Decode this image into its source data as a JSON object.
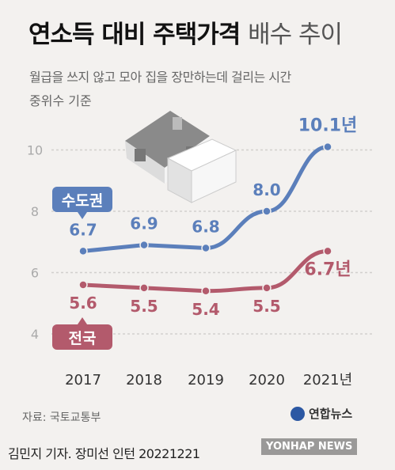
{
  "title_bold": "연소득 대비 주택가격",
  "title_light": "배수 추이",
  "subtitle": "월급을 쓰지 않고 모아 집을 장만하는데 걸리는 시간",
  "basis": "중위수 기준",
  "source": "자료: 국토교통부",
  "credit": "김민지 기자. 장미선 인턴  20221221",
  "logo_text": "연합뉴스",
  "watermark": "YONHAP NEWS",
  "chart_data": {
    "type": "line",
    "x": [
      "2017",
      "2018",
      "2019",
      "2020",
      "2021년"
    ],
    "yticks": [
      4,
      6,
      8,
      10
    ],
    "ylim": [
      3.5,
      11
    ],
    "grid": true,
    "series": [
      {
        "name": "수도권",
        "color": "#5b7fbb",
        "values": [
          6.7,
          6.9,
          6.8,
          8.0,
          10.1
        ],
        "labels": [
          "6.7",
          "6.9",
          "6.8",
          "8.0",
          "10.1년"
        ]
      },
      {
        "name": "전국",
        "color": "#b35a6c",
        "values": [
          5.6,
          5.5,
          5.4,
          5.5,
          6.7
        ],
        "labels": [
          "5.6",
          "5.5",
          "5.4",
          "5.5",
          "6.7년"
        ]
      }
    ]
  }
}
